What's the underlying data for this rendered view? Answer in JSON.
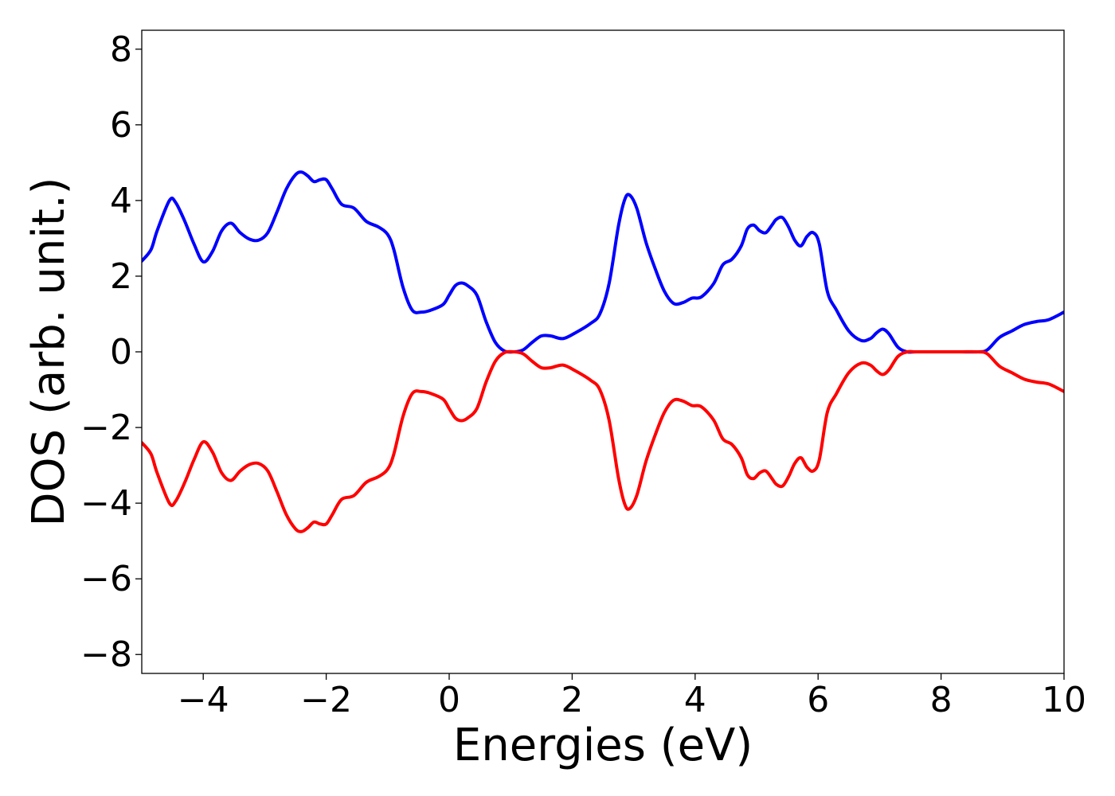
{
  "chart_data": {
    "type": "line",
    "xlabel": "Energies (eV)",
    "ylabel": "DOS (arb. unit.)",
    "xlim": [
      -5,
      10
    ],
    "ylim": [
      -8.5,
      8.5
    ],
    "x_ticks": [
      -4,
      -2,
      0,
      2,
      4,
      6,
      8,
      10
    ],
    "x_tick_labels": [
      "−4",
      "−2",
      "0",
      "2",
      "4",
      "6",
      "8",
      "10"
    ],
    "y_ticks": [
      8,
      6,
      4,
      2,
      0,
      -2,
      -4,
      -6,
      -8
    ],
    "y_tick_labels": [
      "8",
      "6",
      "4",
      "2",
      "0",
      "−2",
      "−4",
      "−6",
      "−8"
    ],
    "grid": false,
    "legend": "none",
    "series": [
      {
        "color": "#0000ff",
        "x": [
          -5.0,
          -4.85,
          -4.75,
          -4.55,
          -4.45,
          -4.3,
          -4.15,
          -4.0,
          -3.85,
          -3.7,
          -3.55,
          -3.4,
          -3.25,
          -3.1,
          -2.95,
          -2.8,
          -2.65,
          -2.5,
          -2.4,
          -2.3,
          -2.2,
          -2.1,
          -2.0,
          -1.9,
          -1.75,
          -1.55,
          -1.35,
          -1.15,
          -1.0,
          -0.9,
          -0.75,
          -0.6,
          -0.45,
          -0.3,
          -0.1,
          0.0,
          0.1,
          0.2,
          0.3,
          0.45,
          0.6,
          0.75,
          0.9,
          1.05,
          1.2,
          1.35,
          1.5,
          1.65,
          1.85,
          2.05,
          2.3,
          2.45,
          2.6,
          2.75,
          2.85,
          2.93,
          3.05,
          3.2,
          3.35,
          3.5,
          3.65,
          3.8,
          3.95,
          4.1,
          4.3,
          4.45,
          4.6,
          4.75,
          4.85,
          4.95,
          5.05,
          5.15,
          5.25,
          5.32,
          5.42,
          5.52,
          5.62,
          5.72,
          5.82,
          5.92,
          6.02,
          6.15,
          6.3,
          6.5,
          6.7,
          6.85,
          6.95,
          7.05,
          7.15,
          7.3,
          7.45,
          7.6,
          8.0,
          8.3,
          8.6,
          8.75,
          8.95,
          9.15,
          9.35,
          9.55,
          9.75,
          10.0
        ],
        "values": [
          2.4,
          2.7,
          3.2,
          4.0,
          3.95,
          3.45,
          2.85,
          2.38,
          2.65,
          3.2,
          3.4,
          3.15,
          2.98,
          2.95,
          3.15,
          3.7,
          4.3,
          4.68,
          4.75,
          4.65,
          4.5,
          4.55,
          4.55,
          4.3,
          3.9,
          3.8,
          3.45,
          3.3,
          3.1,
          2.7,
          1.7,
          1.1,
          1.05,
          1.1,
          1.25,
          1.5,
          1.75,
          1.82,
          1.75,
          1.5,
          0.8,
          0.25,
          0.02,
          0.0,
          0.05,
          0.25,
          0.42,
          0.42,
          0.35,
          0.5,
          0.75,
          1.0,
          1.8,
          3.3,
          4.0,
          4.15,
          3.8,
          2.9,
          2.2,
          1.6,
          1.28,
          1.3,
          1.42,
          1.45,
          1.8,
          2.3,
          2.45,
          2.8,
          3.25,
          3.35,
          3.2,
          3.15,
          3.35,
          3.5,
          3.55,
          3.3,
          2.95,
          2.8,
          3.05,
          3.15,
          2.85,
          1.6,
          1.1,
          0.55,
          0.3,
          0.35,
          0.5,
          0.6,
          0.48,
          0.12,
          0.0,
          0.0,
          0.0,
          0.0,
          0.0,
          0.05,
          0.38,
          0.55,
          0.72,
          0.8,
          0.85,
          1.05
        ]
      },
      {
        "color": "#ff0000",
        "x": [
          -5.0,
          -4.85,
          -4.75,
          -4.55,
          -4.45,
          -4.3,
          -4.15,
          -4.0,
          -3.85,
          -3.7,
          -3.55,
          -3.4,
          -3.25,
          -3.1,
          -2.95,
          -2.8,
          -2.65,
          -2.5,
          -2.4,
          -2.3,
          -2.2,
          -2.1,
          -2.0,
          -1.9,
          -1.75,
          -1.55,
          -1.35,
          -1.15,
          -1.0,
          -0.9,
          -0.75,
          -0.6,
          -0.45,
          -0.3,
          -0.1,
          0.0,
          0.1,
          0.2,
          0.3,
          0.45,
          0.6,
          0.75,
          0.9,
          1.05,
          1.2,
          1.35,
          1.5,
          1.65,
          1.85,
          2.05,
          2.3,
          2.45,
          2.6,
          2.75,
          2.85,
          2.93,
          3.05,
          3.2,
          3.35,
          3.5,
          3.65,
          3.8,
          3.95,
          4.1,
          4.3,
          4.45,
          4.6,
          4.75,
          4.85,
          4.95,
          5.05,
          5.15,
          5.25,
          5.32,
          5.42,
          5.52,
          5.62,
          5.72,
          5.82,
          5.92,
          6.02,
          6.15,
          6.3,
          6.5,
          6.7,
          6.85,
          6.95,
          7.05,
          7.15,
          7.3,
          7.45,
          7.6,
          8.0,
          8.3,
          8.6,
          8.75,
          8.95,
          9.15,
          9.35,
          9.55,
          9.75,
          10.0
        ],
        "values": [
          -2.4,
          -2.7,
          -3.2,
          -4.0,
          -3.95,
          -3.45,
          -2.85,
          -2.38,
          -2.65,
          -3.2,
          -3.4,
          -3.15,
          -2.98,
          -2.95,
          -3.15,
          -3.7,
          -4.3,
          -4.68,
          -4.75,
          -4.65,
          -4.5,
          -4.55,
          -4.55,
          -4.3,
          -3.9,
          -3.8,
          -3.45,
          -3.3,
          -3.1,
          -2.7,
          -1.7,
          -1.1,
          -1.05,
          -1.1,
          -1.25,
          -1.5,
          -1.75,
          -1.82,
          -1.75,
          -1.5,
          -0.8,
          -0.25,
          -0.02,
          0.0,
          -0.05,
          -0.25,
          -0.42,
          -0.42,
          -0.35,
          -0.5,
          -0.75,
          -1.0,
          -1.8,
          -3.3,
          -4.0,
          -4.15,
          -3.8,
          -2.9,
          -2.2,
          -1.6,
          -1.28,
          -1.3,
          -1.42,
          -1.45,
          -1.8,
          -2.3,
          -2.45,
          -2.8,
          -3.25,
          -3.35,
          -3.2,
          -3.15,
          -3.35,
          -3.5,
          -3.55,
          -3.3,
          -2.95,
          -2.8,
          -3.05,
          -3.15,
          -2.85,
          -1.6,
          -1.1,
          -0.55,
          -0.3,
          -0.35,
          -0.5,
          -0.6,
          -0.48,
          -0.12,
          0.0,
          0.0,
          0.0,
          0.0,
          0.0,
          -0.05,
          -0.38,
          -0.55,
          -0.72,
          -0.8,
          -0.85,
          -1.05
        ]
      }
    ]
  }
}
